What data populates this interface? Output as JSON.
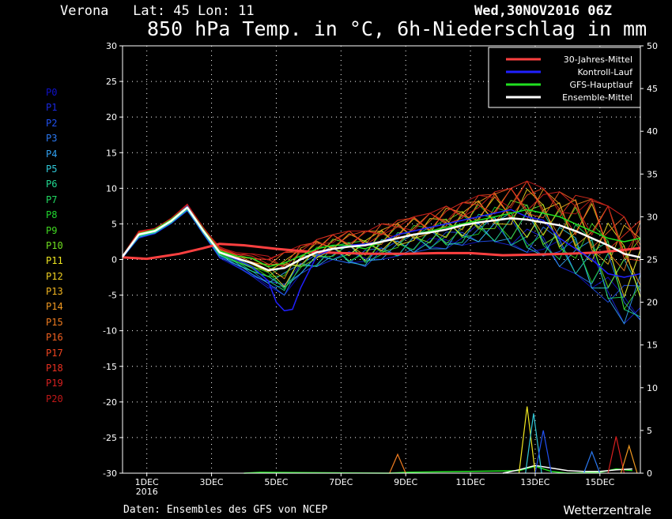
{
  "header": {
    "location": "Verona   Lat: 45 Lon: 11",
    "run": "Wed,30NOV2016 06Z",
    "title": "850 hPa Temp. in °C, 6h-Niederschlag in mm"
  },
  "footer": {
    "source": "Daten: Ensembles des GFS von NCEP",
    "brand": "Wetterzentrale"
  },
  "members": [
    {
      "label": "P0",
      "color": "#1010c8"
    },
    {
      "label": "P1",
      "color": "#1a28e0"
    },
    {
      "label": "P2",
      "color": "#2050f0"
    },
    {
      "label": "P3",
      "color": "#2a78f0"
    },
    {
      "label": "P4",
      "color": "#30a0f0"
    },
    {
      "label": "P5",
      "color": "#30c8d8"
    },
    {
      "label": "P6",
      "color": "#20d890"
    },
    {
      "label": "P7",
      "color": "#20d860"
    },
    {
      "label": "P8",
      "color": "#20d830"
    },
    {
      "label": "P9",
      "color": "#40d820"
    },
    {
      "label": "P10",
      "color": "#70e020"
    },
    {
      "label": "P11",
      "color": "#f0e820"
    },
    {
      "label": "P12",
      "color": "#f0d020"
    },
    {
      "label": "P13",
      "color": "#f0b420"
    },
    {
      "label": "P14",
      "color": "#f09820"
    },
    {
      "label": "P15",
      "color": "#f07c20"
    },
    {
      "label": "P16",
      "color": "#f06020"
    },
    {
      "label": "P17",
      "color": "#f04420"
    },
    {
      "label": "P18",
      "color": "#e83020"
    },
    {
      "label": "P19",
      "color": "#d82020"
    },
    {
      "label": "P20",
      "color": "#c01818"
    }
  ],
  "chart_data": {
    "type": "line",
    "title": "850 hPa Temp. in °C, 6h-Niederschlag in mm",
    "xlabel": "",
    "ylabel": "",
    "x_tick_labels": [
      "1DEC",
      "3DEC",
      "5DEC",
      "7DEC",
      "9DEC",
      "11DEC",
      "13DEC",
      "15DEC"
    ],
    "x_tick_days": [
      1,
      3,
      5,
      7,
      9,
      11,
      13,
      15
    ],
    "x_sublabel": "2016",
    "xlim_days": [
      0.25,
      16.25
    ],
    "y_left": {
      "ticks": [
        30,
        25,
        20,
        15,
        10,
        5,
        0,
        -5,
        -10,
        -15,
        -20,
        -25,
        -30
      ],
      "ylim": [
        -30,
        30
      ],
      "unit": "°C"
    },
    "y_right": {
      "ticks": [
        50,
        45,
        40,
        35,
        30,
        25,
        20,
        15,
        10,
        5,
        0
      ],
      "ylim": [
        0,
        50
      ],
      "unit": "mm"
    },
    "grid": true,
    "legend": {
      "placement": "top-right",
      "entries": [
        {
          "name": "30-Jahres-Mittel",
          "color": "#ff4040"
        },
        {
          "name": "Kontroll-Lauf",
          "color": "#2020ff"
        },
        {
          "name": "GFS-Hauptlauf",
          "color": "#20e020"
        },
        {
          "name": "Ensemble-Mittel",
          "color": "#ffffff"
        }
      ]
    },
    "temperature_series": [
      {
        "name": "30-Jahres-Mittel",
        "color": "#ff4040",
        "width": 3,
        "x": [
          0.25,
          1,
          2,
          2.75,
          3.25,
          4,
          5,
          6,
          7,
          8,
          9,
          10,
          11,
          12,
          13,
          14,
          15,
          16.25
        ],
        "y": [
          0.3,
          0.1,
          0.8,
          1.6,
          2.2,
          2.0,
          1.5,
          1.1,
          0.9,
          0.8,
          0.8,
          0.9,
          0.9,
          0.6,
          0.7,
          0.8,
          1.0,
          1.6
        ]
      },
      {
        "name": "Kontroll-Lauf",
        "color": "#2020ff",
        "width": 1.5,
        "x": [
          0.25,
          0.75,
          1.25,
          1.75,
          2.25,
          2.75,
          3.25,
          3.75,
          4.25,
          4.75,
          5.0,
          5.25,
          5.5,
          5.75,
          6.25,
          6.75,
          7.25,
          7.75,
          8.25,
          8.75,
          9.25,
          9.75,
          10.25,
          10.75,
          11.25,
          11.75,
          12.25,
          12.75,
          13.25,
          13.75,
          14.25,
          14.75,
          15.25,
          15.75,
          16.25
        ],
        "y": [
          0.5,
          3.5,
          4.0,
          5.5,
          7.5,
          4.0,
          1.0,
          0.0,
          -1.0,
          -3.0,
          -6.0,
          -7.2,
          -7.0,
          -4.0,
          0.5,
          1.5,
          2.0,
          2.2,
          2.5,
          3.5,
          4.0,
          4.5,
          5.0,
          5.5,
          6.0,
          6.5,
          7.0,
          6.0,
          5.5,
          3.0,
          1.5,
          0.0,
          -2.0,
          -2.5,
          -2.0
        ]
      },
      {
        "name": "GFS-Hauptlauf",
        "color": "#20e020",
        "width": 1.5,
        "x": [
          0.25,
          0.75,
          1.25,
          1.75,
          2.25,
          2.75,
          3.25,
          3.75,
          4.25,
          4.75,
          5.25,
          5.75,
          6.25,
          6.75,
          7.25,
          7.75,
          8.25,
          8.75,
          9.25,
          9.75,
          10.25,
          10.75,
          11.25,
          11.75,
          12.25,
          12.75,
          13.25,
          13.75,
          14.25,
          14.75,
          15.25,
          15.75,
          16.25
        ],
        "y": [
          0.5,
          3.6,
          4.2,
          5.6,
          7.4,
          4.2,
          1.2,
          0.5,
          0.2,
          -1.0,
          -0.5,
          0.5,
          1.5,
          2.0,
          2.0,
          1.5,
          2.5,
          3.0,
          3.5,
          4.0,
          4.5,
          5.0,
          5.5,
          6.0,
          6.5,
          7.0,
          6.5,
          6.0,
          5.0,
          4.0,
          3.0,
          2.5,
          3.0
        ]
      },
      {
        "name": "Ensemble-Mittel",
        "color": "#ffffff",
        "width": 2.5,
        "x": [
          0.25,
          0.75,
          1.25,
          1.75,
          2.25,
          2.75,
          3.25,
          3.75,
          4.25,
          4.75,
          5.25,
          5.75,
          6.25,
          6.75,
          7.25,
          7.75,
          8.25,
          8.75,
          9.25,
          9.75,
          10.25,
          10.75,
          11.25,
          11.75,
          12.25,
          12.75,
          13.25,
          13.75,
          14.25,
          14.75,
          15.25,
          15.75,
          16.25
        ],
        "y": [
          0.4,
          3.5,
          4.0,
          5.4,
          7.3,
          4.0,
          1.0,
          0.2,
          -0.5,
          -1.5,
          -1.2,
          0.0,
          1.0,
          1.5,
          1.8,
          2.0,
          2.5,
          3.0,
          3.5,
          3.8,
          4.2,
          4.8,
          5.2,
          5.5,
          5.8,
          5.6,
          5.2,
          4.8,
          4.0,
          3.0,
          2.0,
          0.8,
          0.3
        ]
      }
    ],
    "ensemble_spread": {
      "band_low": [
        0.2,
        3.0,
        3.6,
        5.0,
        6.8,
        3.5,
        0.2,
        -1.0,
        -2.5,
        -4.0,
        -5.0,
        -2.0,
        -1.0,
        0.0,
        -0.5,
        -1.0,
        0.0,
        0.5,
        1.0,
        1.5,
        1.5,
        2.0,
        2.5,
        2.5,
        2.0,
        1.0,
        0.5,
        -1.0,
        -2.0,
        -4.0,
        -6.0,
        -9.0,
        -8.5
      ],
      "band_high": [
        0.6,
        4.0,
        4.4,
        5.8,
        7.8,
        4.5,
        1.8,
        1.0,
        0.8,
        0.5,
        1.0,
        2.0,
        2.8,
        3.5,
        4.0,
        4.0,
        5.0,
        5.5,
        6.0,
        6.5,
        7.5,
        8.0,
        9.0,
        9.5,
        10.0,
        11.0,
        10.0,
        9.5,
        9.0,
        8.5,
        7.5,
        6.0,
        5.5
      ]
    },
    "precipitation_series": [
      {
        "name": "GFS-Hauptlauf",
        "color": "#20e020",
        "x": [
          4,
          4.5,
          8.5,
          9,
          12.5,
          13,
          13.5,
          14,
          15,
          15.5,
          16
        ],
        "y": [
          0,
          0.1,
          0,
          0.1,
          0.3,
          0.8,
          0.2,
          0,
          0.1,
          0.5,
          0.3
        ]
      },
      {
        "name": "Ensemble-Mittel",
        "color": "#ffffff",
        "x": [
          12,
          12.5,
          13,
          13.5,
          14,
          14.5,
          15,
          15.5,
          16
        ],
        "y": [
          0,
          0.4,
          0.9,
          0.6,
          0.3,
          0.2,
          0.2,
          0.4,
          0.5
        ]
      }
    ],
    "precipitation_peaks": [
      {
        "x": 12.75,
        "y": 7.8,
        "color": "#f0e820"
      },
      {
        "x": 12.95,
        "y": 7.0,
        "color": "#30c8d8"
      },
      {
        "x": 13.25,
        "y": 5.0,
        "color": "#2050f0"
      },
      {
        "x": 8.75,
        "y": 2.2,
        "color": "#f07c20"
      },
      {
        "x": 15.5,
        "y": 4.3,
        "color": "#d82020"
      },
      {
        "x": 14.75,
        "y": 2.5,
        "color": "#2a78f0"
      },
      {
        "x": 15.9,
        "y": 3.2,
        "color": "#f09820"
      }
    ]
  }
}
